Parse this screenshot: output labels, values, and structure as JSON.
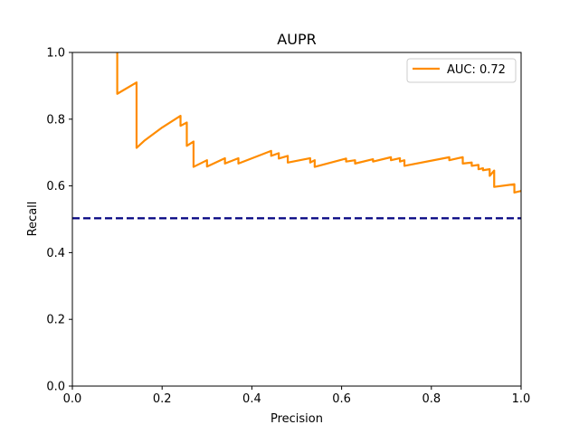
{
  "chart_data": {
    "type": "line",
    "title": "AUPR",
    "xlabel": "Precision",
    "ylabel": "Recall",
    "xlim": [
      0,
      1
    ],
    "ylim": [
      0,
      1
    ],
    "xticks": [
      "0.0",
      "0.2",
      "0.4",
      "0.6",
      "0.8",
      "1.0"
    ],
    "yticks": [
      "0.0",
      "0.2",
      "0.4",
      "0.6",
      "0.8",
      "1.0"
    ],
    "grid": false,
    "legend_position": "top-right",
    "series": [
      {
        "name": "AUC: 0.72",
        "color": "#ff8c00",
        "style": "solid",
        "x": [
          0.1,
          0.1,
          0.143,
          0.143,
          0.16,
          0.2,
          0.241,
          0.241,
          0.255,
          0.255,
          0.27,
          0.27,
          0.3,
          0.3,
          0.34,
          0.34,
          0.37,
          0.37,
          0.443,
          0.443,
          0.46,
          0.46,
          0.48,
          0.48,
          0.53,
          0.53,
          0.54,
          0.54,
          0.61,
          0.61,
          0.63,
          0.63,
          0.67,
          0.67,
          0.71,
          0.71,
          0.73,
          0.73,
          0.74,
          0.74,
          0.84,
          0.84,
          0.87,
          0.87,
          0.89,
          0.89,
          0.905,
          0.905,
          0.915,
          0.915,
          0.93,
          0.93,
          0.94,
          0.94,
          0.985,
          0.985,
          1.0
        ],
        "y": [
          1.0,
          0.876,
          0.91,
          0.714,
          0.735,
          0.775,
          0.81,
          0.78,
          0.79,
          0.72,
          0.733,
          0.657,
          0.677,
          0.658,
          0.683,
          0.667,
          0.683,
          0.667,
          0.705,
          0.69,
          0.698,
          0.682,
          0.69,
          0.67,
          0.683,
          0.67,
          0.677,
          0.657,
          0.682,
          0.673,
          0.677,
          0.667,
          0.68,
          0.673,
          0.686,
          0.677,
          0.683,
          0.673,
          0.677,
          0.66,
          0.686,
          0.677,
          0.686,
          0.667,
          0.67,
          0.66,
          0.663,
          0.65,
          0.653,
          0.647,
          0.65,
          0.63,
          0.646,
          0.597,
          0.605,
          0.58,
          0.585
        ]
      },
      {
        "name": "",
        "color": "#000080",
        "style": "dashed",
        "x": [
          0,
          1
        ],
        "y": [
          0.503,
          0.503
        ]
      }
    ]
  }
}
